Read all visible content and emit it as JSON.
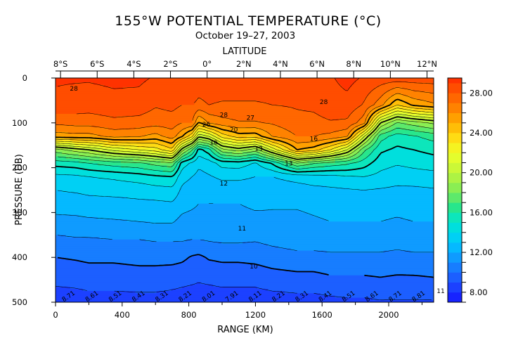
{
  "chart_data": {
    "type": "heatmap",
    "title": "155°W POTENTIAL TEMPERATURE (°C)",
    "subtitle": "October 19–27, 2003",
    "xlabel": "RANGE (KM)",
    "ylabel": "PRESSURE (DB)",
    "top_axis_label": "LATITUDE",
    "xlim": [
      0,
      2270
    ],
    "ylim": [
      500,
      0
    ],
    "x_ticks": [
      "0",
      "400",
      "800",
      "1200",
      "1600",
      "2000"
    ],
    "x_tick_values": [
      0,
      400,
      800,
      1200,
      1600,
      2000
    ],
    "y_ticks": [
      "0",
      "100",
      "200",
      "300",
      "400",
      "500"
    ],
    "y_tick_values": [
      0,
      100,
      200,
      300,
      400,
      500
    ],
    "latitude_ticks": [
      "8°S",
      "6°S",
      "4°S",
      "2°S",
      "0°",
      "2°N",
      "4°N",
      "6°N",
      "8°N",
      "10°N",
      "12°N"
    ],
    "latitude_tick_ranges": [
      30,
      250,
      470,
      690,
      910,
      1130,
      1350,
      1570,
      1790,
      2010,
      2230
    ],
    "colorbar": {
      "labels": [
        "8.00",
        "12.00",
        "16.00",
        "20.00",
        "24.00",
        "28.00"
      ],
      "label_values": [
        8,
        12,
        16,
        20,
        24,
        28
      ],
      "vmin": 7,
      "vmax": 29.5,
      "step": 1
    },
    "contour_labels": [
      {
        "text": "28",
        "x": 110,
        "p": 28
      },
      {
        "text": "28",
        "x": 1610,
        "p": 58
      },
      {
        "text": "28",
        "x": 1010,
        "p": 87
      },
      {
        "text": "27",
        "x": 1170,
        "p": 93
      },
      {
        "text": "26",
        "x": 905,
        "p": 108
      },
      {
        "text": "20",
        "x": 1070,
        "p": 120
      },
      {
        "text": "16",
        "x": 950,
        "p": 148
      },
      {
        "text": "16",
        "x": 1550,
        "p": 140
      },
      {
        "text": "13",
        "x": 1220,
        "p": 162
      },
      {
        "text": "13",
        "x": 1400,
        "p": 195
      },
      {
        "text": "12",
        "x": 1010,
        "p": 240
      },
      {
        "text": "11",
        "x": 1120,
        "p": 340
      },
      {
        "text": "10",
        "x": 1190,
        "p": 425
      },
      {
        "text": "11",
        "x": 2330,
        "p": 480
      }
    ],
    "bottom_labels": [
      "8.71",
      "8.61",
      "8.51",
      "8.41",
      "8.31",
      "8.21",
      "8.01",
      "7.91",
      "8.11",
      "8.21",
      "8.31",
      "8.41",
      "8.51",
      "8.61",
      "8.71",
      "8.81"
    ],
    "profiles": [
      {
        "x": 0,
        "values": [
          29.1,
          28.8,
          27.2,
          25.5,
          18.6,
          15.4,
          13.7,
          13.0,
          12.6,
          11.6,
          10.8,
          10.0,
          9.2,
          8.5
        ]
      },
      {
        "x": 120,
        "values": [
          29.1,
          28.6,
          27.4,
          25.6,
          19.5,
          15.6,
          13.8,
          13.1,
          12.6,
          11.7,
          10.9,
          10.1,
          9.3,
          8.5
        ]
      },
      {
        "x": 200,
        "values": [
          29.1,
          28.5,
          27.4,
          25.6,
          20.0,
          16.0,
          14.0,
          13.2,
          12.7,
          11.8,
          10.9,
          10.2,
          9.4,
          8.6
        ]
      },
      {
        "x": 350,
        "values": [
          29.2,
          28.7,
          27.7,
          26.3,
          21.3,
          16.5,
          14.2,
          13.3,
          12.7,
          11.9,
          11.0,
          10.2,
          9.4,
          8.6
        ]
      },
      {
        "x": 500,
        "values": [
          29.2,
          28.6,
          27.6,
          26.1,
          22.0,
          16.8,
          14.5,
          13.4,
          12.8,
          12.0,
          11.0,
          10.3,
          9.5,
          8.6
        ]
      },
      {
        "x": 600,
        "values": [
          28.9,
          28.1,
          27.4,
          25.6,
          22.5,
          17.4,
          14.8,
          13.6,
          12.8,
          12.1,
          11.1,
          10.3,
          9.5,
          8.6
        ]
      },
      {
        "x": 700,
        "values": [
          28.9,
          28.3,
          27.5,
          26.5,
          23.8,
          17.8,
          15.0,
          13.7,
          12.9,
          12.1,
          11.1,
          10.3,
          9.4,
          8.5
        ]
      },
      {
        "x": 760,
        "values": [
          28.9,
          28.0,
          27.0,
          25.1,
          19.5,
          14.5,
          13.3,
          12.8,
          12.4,
          11.7,
          11.1,
          10.2,
          9.3,
          8.4
        ]
      },
      {
        "x": 820,
        "values": [
          28.9,
          28.0,
          27.0,
          23.2,
          17.1,
          13.8,
          13.0,
          12.6,
          12.2,
          11.6,
          11.0,
          9.9,
          9.2,
          8.3
        ]
      },
      {
        "x": 860,
        "values": [
          28.5,
          27.8,
          24.8,
          20.2,
          14.6,
          13.2,
          12.7,
          12.3,
          12.0,
          11.6,
          11.0,
          9.8,
          9.1,
          8.3
        ]
      },
      {
        "x": 920,
        "values": [
          28.6,
          28.0,
          26.1,
          21.0,
          15.6,
          13.5,
          12.9,
          12.3,
          12.0,
          11.6,
          11.1,
          10.1,
          9.2,
          8.3
        ]
      },
      {
        "x": 1000,
        "values": [
          28.6,
          27.9,
          26.6,
          23.4,
          18.7,
          14.4,
          13.2,
          12.5,
          12.0,
          11.7,
          11.2,
          10.2,
          9.3,
          8.4
        ]
      },
      {
        "x": 1100,
        "values": [
          28.6,
          27.9,
          26.9,
          24.5,
          19.5,
          14.5,
          13.2,
          12.5,
          12.0,
          11.6,
          11.2,
          10.2,
          9.3,
          8.4
        ]
      },
      {
        "x": 1200,
        "values": [
          28.6,
          27.9,
          26.9,
          24.4,
          18.5,
          13.9,
          13.0,
          12.5,
          12.2,
          11.7,
          11.1,
          10.3,
          9.3,
          8.4
        ]
      },
      {
        "x": 1300,
        "values": [
          28.5,
          28.0,
          27.1,
          26.0,
          21.3,
          15.1,
          13.0,
          12.4,
          12.1,
          11.8,
          11.3,
          10.5,
          9.5,
          8.5
        ]
      },
      {
        "x": 1450,
        "values": [
          28.5,
          28.1,
          27.7,
          27.0,
          25.0,
          18.0,
          13.4,
          12.5,
          12.1,
          11.8,
          11.5,
          10.7,
          9.6,
          8.6
        ]
      },
      {
        "x": 1550,
        "values": [
          28.7,
          28.2,
          27.7,
          27.0,
          24.5,
          17.1,
          13.6,
          12.7,
          12.2,
          11.9,
          11.5,
          10.7,
          9.6,
          8.6
        ]
      },
      {
        "x": 1650,
        "values": [
          28.9,
          28.6,
          27.9,
          26.7,
          23.0,
          16.6,
          13.7,
          12.8,
          12.3,
          12.0,
          11.5,
          10.8,
          9.8,
          8.7
        ]
      },
      {
        "x": 1750,
        "values": [
          29.3,
          28.7,
          27.8,
          26.1,
          21.0,
          16.2,
          13.9,
          12.9,
          12.3,
          12.0,
          11.5,
          10.8,
          9.8,
          8.8
        ]
      },
      {
        "x": 1850,
        "values": [
          28.9,
          27.9,
          26.4,
          21.2,
          17.3,
          15.5,
          14.0,
          13.0,
          12.4,
          12.0,
          11.5,
          10.8,
          9.8,
          8.8
        ]
      },
      {
        "x": 1950,
        "values": [
          28.6,
          26.4,
          20.0,
          16.5,
          15.2,
          14.4,
          13.7,
          12.9,
          12.4,
          12.0,
          11.5,
          10.8,
          9.9,
          8.9
        ]
      },
      {
        "x": 2050,
        "values": [
          28.6,
          24.0,
          17.9,
          15.5,
          14.8,
          14.1,
          13.4,
          12.8,
          12.3,
          11.9,
          11.4,
          10.7,
          9.8,
          8.9
        ]
      },
      {
        "x": 2150,
        "values": [
          28.6,
          25.2,
          18.5,
          15.9,
          15.0,
          14.3,
          13.5,
          12.8,
          12.4,
          12.0,
          11.5,
          10.8,
          9.8,
          8.9
        ]
      },
      {
        "x": 2270,
        "values": [
          28.6,
          25.8,
          19.2,
          16.4,
          15.3,
          14.5,
          13.6,
          12.9,
          12.4,
          12.0,
          11.5,
          10.8,
          9.9,
          8.9
        ]
      }
    ],
    "profile_pressures": [
      0,
      60,
      100,
      130,
      160,
      190,
      220,
      250,
      280,
      320,
      360,
      400,
      450,
      500
    ]
  }
}
